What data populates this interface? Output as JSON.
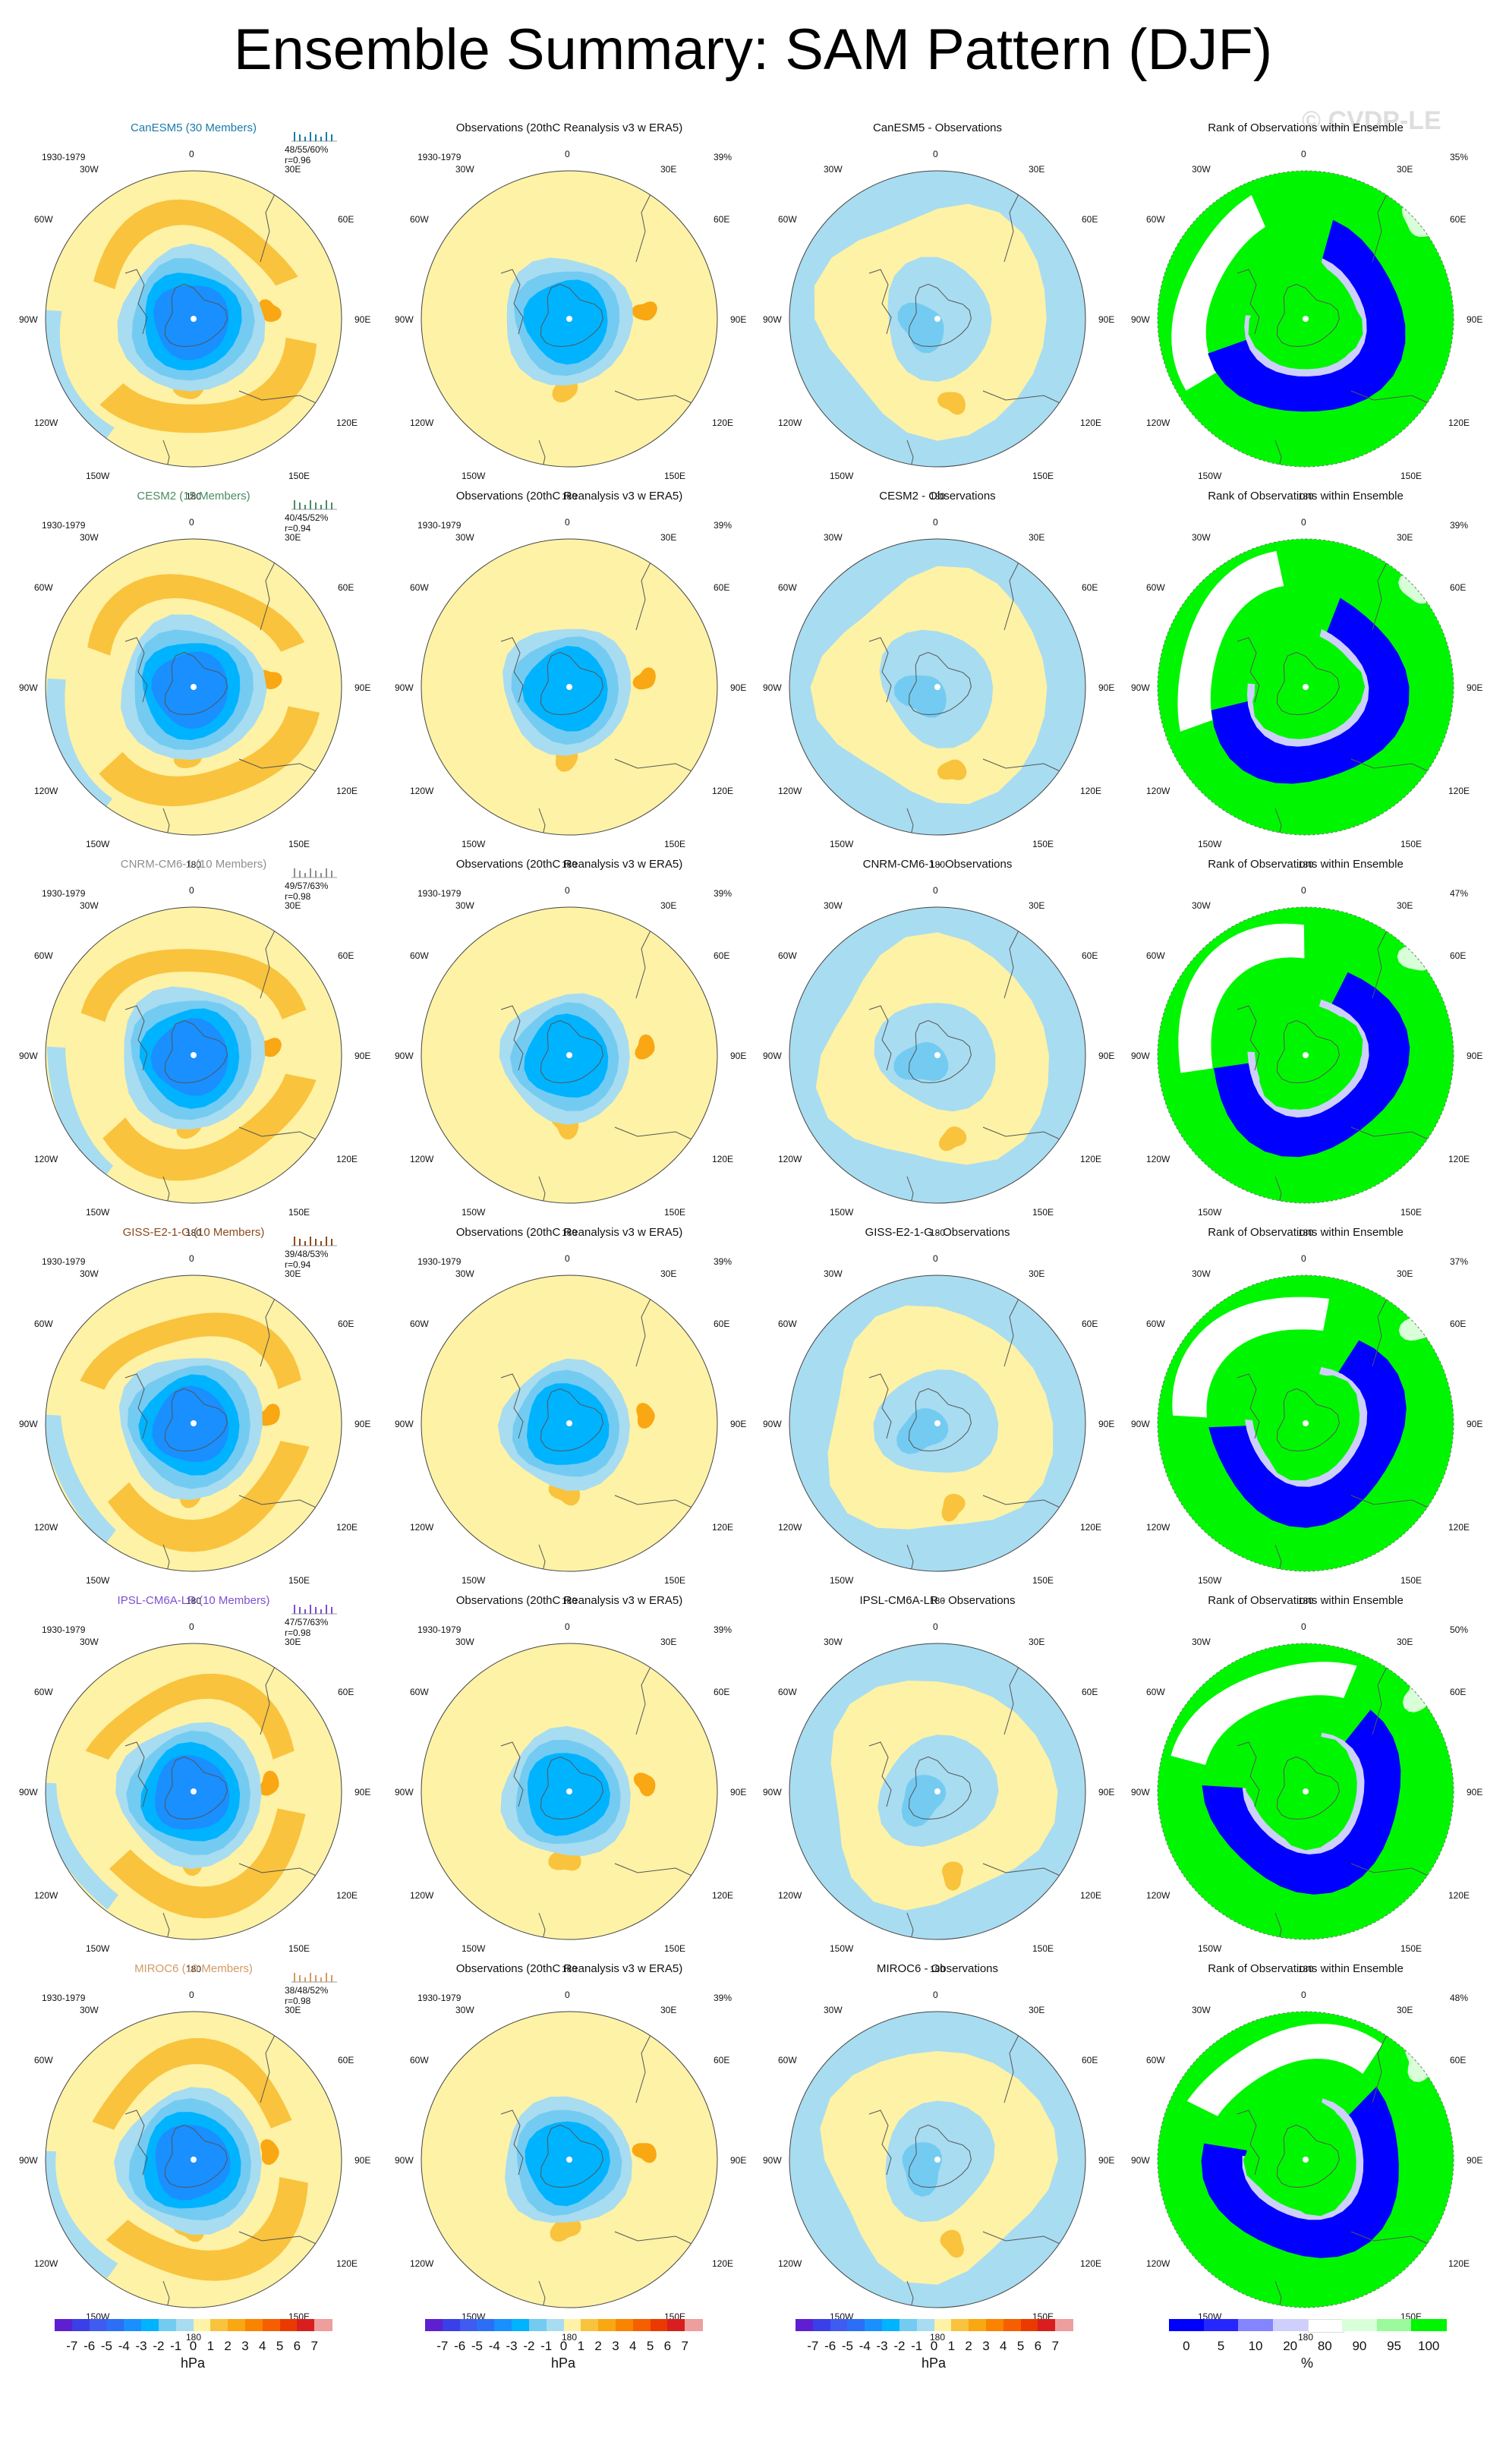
{
  "title": "Ensemble Summary: SAM Pattern (DJF)",
  "watermark": "© CVDP-LE",
  "period": "1930-1979",
  "obs_title": "Observations (20thC Reanalysis v3 w ERA5)",
  "obs_pct": "39%",
  "rank_title": "Rank of Observations within Ensemble",
  "lon_labels": {
    "deg0": "0",
    "e30": "30E",
    "e60": "60E",
    "e90": "90E",
    "e120": "120E",
    "e150": "150E",
    "deg180": "180",
    "w150": "150W",
    "w120": "120W",
    "w90": "90W",
    "w60": "60W",
    "w30": "30W"
  },
  "colors": {
    "map_text": "#111111",
    "pressure_levels": {
      "minus7": "#5e1fd1",
      "minus6": "#3a3fe8",
      "minus5": "#3f5bf0",
      "minus4": "#2a6ff5",
      "minus3": "#1a8fff",
      "minus2": "#00b3ff",
      "minus1": "#74cbf1",
      "minus0": "#a8dcf1",
      "plus0": "#fdf2a6",
      "plus1": "#f9c33d",
      "plus2": "#f9a713",
      "plus3": "#fa8400",
      "plus4": "#f55f00",
      "plus5": "#ea3a00",
      "plus6": "#d81e1e",
      "plus7": "#ef9e9e"
    },
    "rank_levels": {
      "p0": "#0000ff",
      "p5": "#2626ff",
      "p10": "#8585ff",
      "p20": "#cfcffb",
      "p80": "#ffffff",
      "p90": "#d8ffd8",
      "p95": "#9bfa9b",
      "p100": "#00f600"
    }
  },
  "models": [
    {
      "name": "CanESM5 (30 Members)",
      "name_color": "#1a7aa8",
      "stats": "48/55/60%",
      "r": "r=0.96",
      "diff_title": "CanESM5 - Observations",
      "rank_pct": "35%"
    },
    {
      "name": "CESM2 (15 Members)",
      "name_color": "#4b8a64",
      "stats": "40/45/52%",
      "r": "r=0.94",
      "diff_title": "CESM2 - Observations",
      "rank_pct": "39%"
    },
    {
      "name": "CNRM-CM6-1 (10 Members)",
      "name_color": "#8f8f8f",
      "stats": "49/57/63%",
      "r": "r=0.98",
      "diff_title": "CNRM-CM6-1 - Observations",
      "rank_pct": "47%"
    },
    {
      "name": "GISS-E2-1-G (10 Members)",
      "name_color": "#8a4a1e",
      "stats": "39/48/53%",
      "r": "r=0.94",
      "diff_title": "GISS-E2-1-G - Observations",
      "rank_pct": "37%"
    },
    {
      "name": "IPSL-CM6A-LR (10 Members)",
      "name_color": "#7b4fd1",
      "stats": "47/57/63%",
      "r": "r=0.98",
      "diff_title": "IPSL-CM6A-LR - Observations",
      "rank_pct": "50%"
    },
    {
      "name": "MIROC6 (10 Members)",
      "name_color": "#d29a63",
      "stats": "38/48/52%",
      "r": "r=0.98",
      "diff_title": "MIROC6 - Observations",
      "rank_pct": "48%"
    }
  ],
  "colorbars": {
    "pressure_ticks": [
      "-7",
      "-6",
      "-5",
      "-4",
      "-3",
      "-2",
      "-1",
      "0",
      "1",
      "2",
      "3",
      "4",
      "5",
      "6",
      "7"
    ],
    "pressure_unit": "hPa",
    "rank_ticks": [
      "0",
      "5",
      "10",
      "20",
      "80",
      "90",
      "95",
      "100"
    ],
    "rank_unit": "%"
  }
}
